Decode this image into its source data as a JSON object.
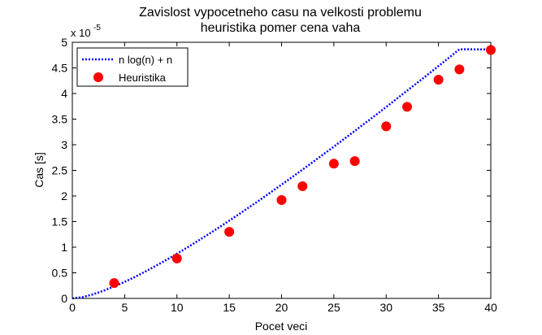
{
  "chart_data": {
    "type": "scatter",
    "title": "Zavislost vypocetneho casu na velkosti problemu",
    "subtitle": "heuristika pomer cena vaha",
    "xlabel": "Pocet veci",
    "ylabel": "Cas [s]",
    "y_exponent_label": "x 10",
    "y_exponent_power": "-5",
    "xlim": [
      0,
      40
    ],
    "ylim": [
      0,
      5
    ],
    "grid": false,
    "legend_position": "top-left",
    "x_ticks": [
      0,
      5,
      10,
      15,
      20,
      25,
      30,
      35,
      40
    ],
    "y_ticks": [
      0,
      0.5,
      1,
      1.5,
      2,
      2.5,
      3,
      3.5,
      4,
      4.5,
      5
    ],
    "x_tick_labels": [
      "0",
      "5",
      "10",
      "15",
      "20",
      "25",
      "30",
      "35",
      "40"
    ],
    "y_tick_labels": [
      "0",
      "0.5",
      "1",
      "1.5",
      "2",
      "2.5",
      "3",
      "3.5",
      "4",
      "4.5",
      "5"
    ],
    "series": [
      {
        "name": "n log(n) + n",
        "style": "dotted-line",
        "color": "#0000ff",
        "x": [
          0,
          1,
          2,
          3,
          4,
          5,
          6,
          7,
          8,
          9,
          10,
          11,
          12,
          13,
          14,
          15,
          16,
          17,
          18,
          19,
          20,
          21,
          22,
          23,
          24,
          25,
          26,
          27,
          28,
          29,
          30,
          31,
          32,
          33,
          34,
          35,
          36,
          37,
          38,
          39,
          40
        ],
        "y": [
          0,
          0.026,
          0.081,
          0.151,
          0.234,
          0.323,
          0.421,
          0.527,
          0.638,
          0.753,
          0.873,
          0.996,
          1.122,
          1.251,
          1.383,
          1.517,
          1.654,
          1.793,
          1.934,
          2.076,
          2.221,
          2.367,
          2.514,
          2.662,
          2.812,
          2.964,
          3.117,
          3.269,
          3.425,
          3.58,
          3.737,
          3.895,
          4.055,
          4.214,
          4.375,
          4.537,
          4.699,
          4.863,
          5.027,
          5.192,
          4.86
        ]
      },
      {
        "name": "Heuristika",
        "style": "markers",
        "color": "#ff0000",
        "x": [
          4,
          10,
          15,
          20,
          22,
          25,
          27,
          30,
          32,
          35,
          37,
          40
        ],
        "y": [
          0.3,
          0.78,
          1.3,
          1.92,
          2.19,
          2.63,
          2.68,
          3.36,
          3.74,
          4.27,
          4.47,
          4.85
        ]
      }
    ]
  }
}
